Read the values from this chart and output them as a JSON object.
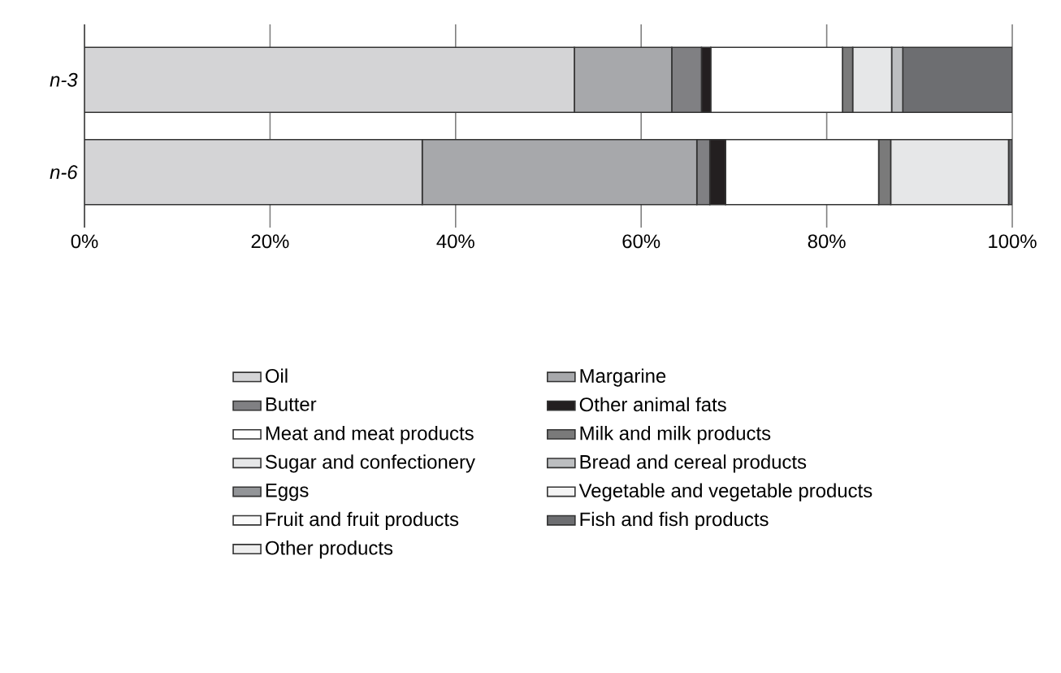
{
  "chart_data": {
    "type": "bar",
    "orientation": "horizontal",
    "stacked": true,
    "categories": [
      "n-3",
      "n-6"
    ],
    "series": [
      {
        "name": "Oil",
        "color": "#d4d4d6",
        "values": [
          52.8,
          36.4
        ]
      },
      {
        "name": "Margarine",
        "color": "#a7a8ab",
        "values": [
          10.5,
          29.6
        ]
      },
      {
        "name": "Butter",
        "color": "#808083",
        "values": [
          3.2,
          1.4
        ]
      },
      {
        "name": "Other animal fats",
        "color": "#231f20",
        "values": [
          1.0,
          1.7
        ]
      },
      {
        "name": "Meat and meat products",
        "color": "#ffffff",
        "values": [
          14.2,
          16.5
        ]
      },
      {
        "name": "Milk and milk products",
        "color": "#7a7a7a",
        "values": [
          1.1,
          1.3
        ]
      },
      {
        "name": "Sugar and confectionery",
        "color": "#e6e7e8",
        "values": [
          4.2,
          12.7
        ]
      },
      {
        "name": "Bread and cereal products",
        "color": "#bcbec0",
        "values": [
          1.2,
          0
        ]
      },
      {
        "name": "Eggs",
        "color": "#939598",
        "values": [
          0,
          0
        ]
      },
      {
        "name": "Vegetable and vegetable products",
        "color": "#f4f4f4",
        "values": [
          0,
          0
        ]
      },
      {
        "name": "Fruit and fruit products",
        "color": "#fafafa",
        "values": [
          0,
          0
        ]
      },
      {
        "name": "Fish and fish products",
        "color": "#6d6e71",
        "values": [
          11.8,
          0.4
        ]
      },
      {
        "name": "Other products",
        "color": "#eeeeee",
        "values": [
          0,
          0
        ]
      }
    ],
    "xlim": [
      0,
      100
    ],
    "xticks": [
      {
        "value": 0,
        "label": "0%"
      },
      {
        "value": 20,
        "label": "20%"
      },
      {
        "value": 40,
        "label": "40%"
      },
      {
        "value": 60,
        "label": "60%"
      },
      {
        "value": 80,
        "label": "80%"
      },
      {
        "value": 100,
        "label": "100%"
      }
    ],
    "grid": "x",
    "legend": "bottom"
  }
}
